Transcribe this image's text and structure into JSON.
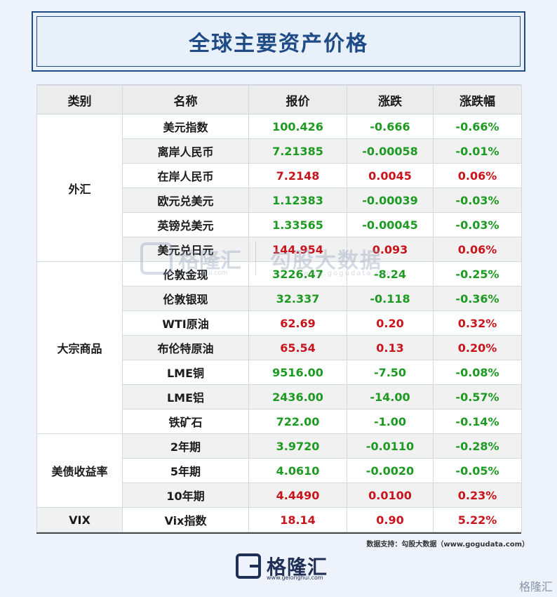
{
  "title": "全球主要资产价格",
  "headers": [
    "类别",
    "名称",
    "报价",
    "涨跌",
    "涨跌幅"
  ],
  "groups": [
    {
      "category": "外汇",
      "rows": [
        {
          "name": "美元指数",
          "price": "100.426",
          "change": "-0.666",
          "pct": "-0.66%",
          "dir": "down"
        },
        {
          "name": "离岸人民币",
          "price": "7.21385",
          "change": "-0.00058",
          "pct": "-0.01%",
          "dir": "down"
        },
        {
          "name": "在岸人民币",
          "price": "7.2148",
          "change": "0.0045",
          "pct": "0.06%",
          "dir": "up"
        },
        {
          "name": "欧元兑美元",
          "price": "1.12383",
          "change": "-0.00039",
          "pct": "-0.03%",
          "dir": "down"
        },
        {
          "name": "英镑兑美元",
          "price": "1.33565",
          "change": "-0.00045",
          "pct": "-0.03%",
          "dir": "down"
        },
        {
          "name": "美元兑日元",
          "price": "144.954",
          "change": "0.093",
          "pct": "0.06%",
          "dir": "up"
        }
      ]
    },
    {
      "category": "大宗商品",
      "rows": [
        {
          "name": "伦敦金现",
          "price": "3226.47",
          "change": "-8.24",
          "pct": "-0.25%",
          "dir": "down"
        },
        {
          "name": "伦敦银现",
          "price": "32.337",
          "change": "-0.118",
          "pct": "-0.36%",
          "dir": "down"
        },
        {
          "name": "WTI原油",
          "price": "62.69",
          "change": "0.20",
          "pct": "0.32%",
          "dir": "up"
        },
        {
          "name": "布伦特原油",
          "price": "65.54",
          "change": "0.13",
          "pct": "0.20%",
          "dir": "up"
        },
        {
          "name": "LME铜",
          "price": "9516.00",
          "change": "-7.50",
          "pct": "-0.08%",
          "dir": "down"
        },
        {
          "name": "LME铝",
          "price": "2436.00",
          "change": "-14.00",
          "pct": "-0.57%",
          "dir": "down"
        },
        {
          "name": "铁矿石",
          "price": "722.00",
          "change": "-1.00",
          "pct": "-0.14%",
          "dir": "down"
        }
      ]
    },
    {
      "category": "美债收益率",
      "rows": [
        {
          "name": "2年期",
          "price": "3.9720",
          "change": "-0.0110",
          "pct": "-0.28%",
          "dir": "down"
        },
        {
          "name": "5年期",
          "price": "4.0610",
          "change": "-0.0020",
          "pct": "-0.05%",
          "dir": "down"
        },
        {
          "name": "10年期",
          "price": "4.4490",
          "change": "0.0100",
          "pct": "0.23%",
          "dir": "up"
        }
      ]
    },
    {
      "category": "VIX",
      "rows": [
        {
          "name": "Vix指数",
          "price": "18.14",
          "change": "0.90",
          "pct": "5.22%",
          "dir": "up"
        }
      ]
    }
  ],
  "watermark": {
    "brand_cn": "格隆汇",
    "brand_url": "gelonghui.com",
    "data_cn": "勾股大数据",
    "data_url": "www.gogudata.com"
  },
  "source": "数据支持：勾股大数据（www.gogudata.com）",
  "logo": {
    "name": "格隆汇",
    "url": "www.gelonghui.com"
  },
  "corner_mark": "格隆汇",
  "colors": {
    "up": "#c8141c",
    "down": "#1d9a22",
    "title": "#1f4b86"
  }
}
